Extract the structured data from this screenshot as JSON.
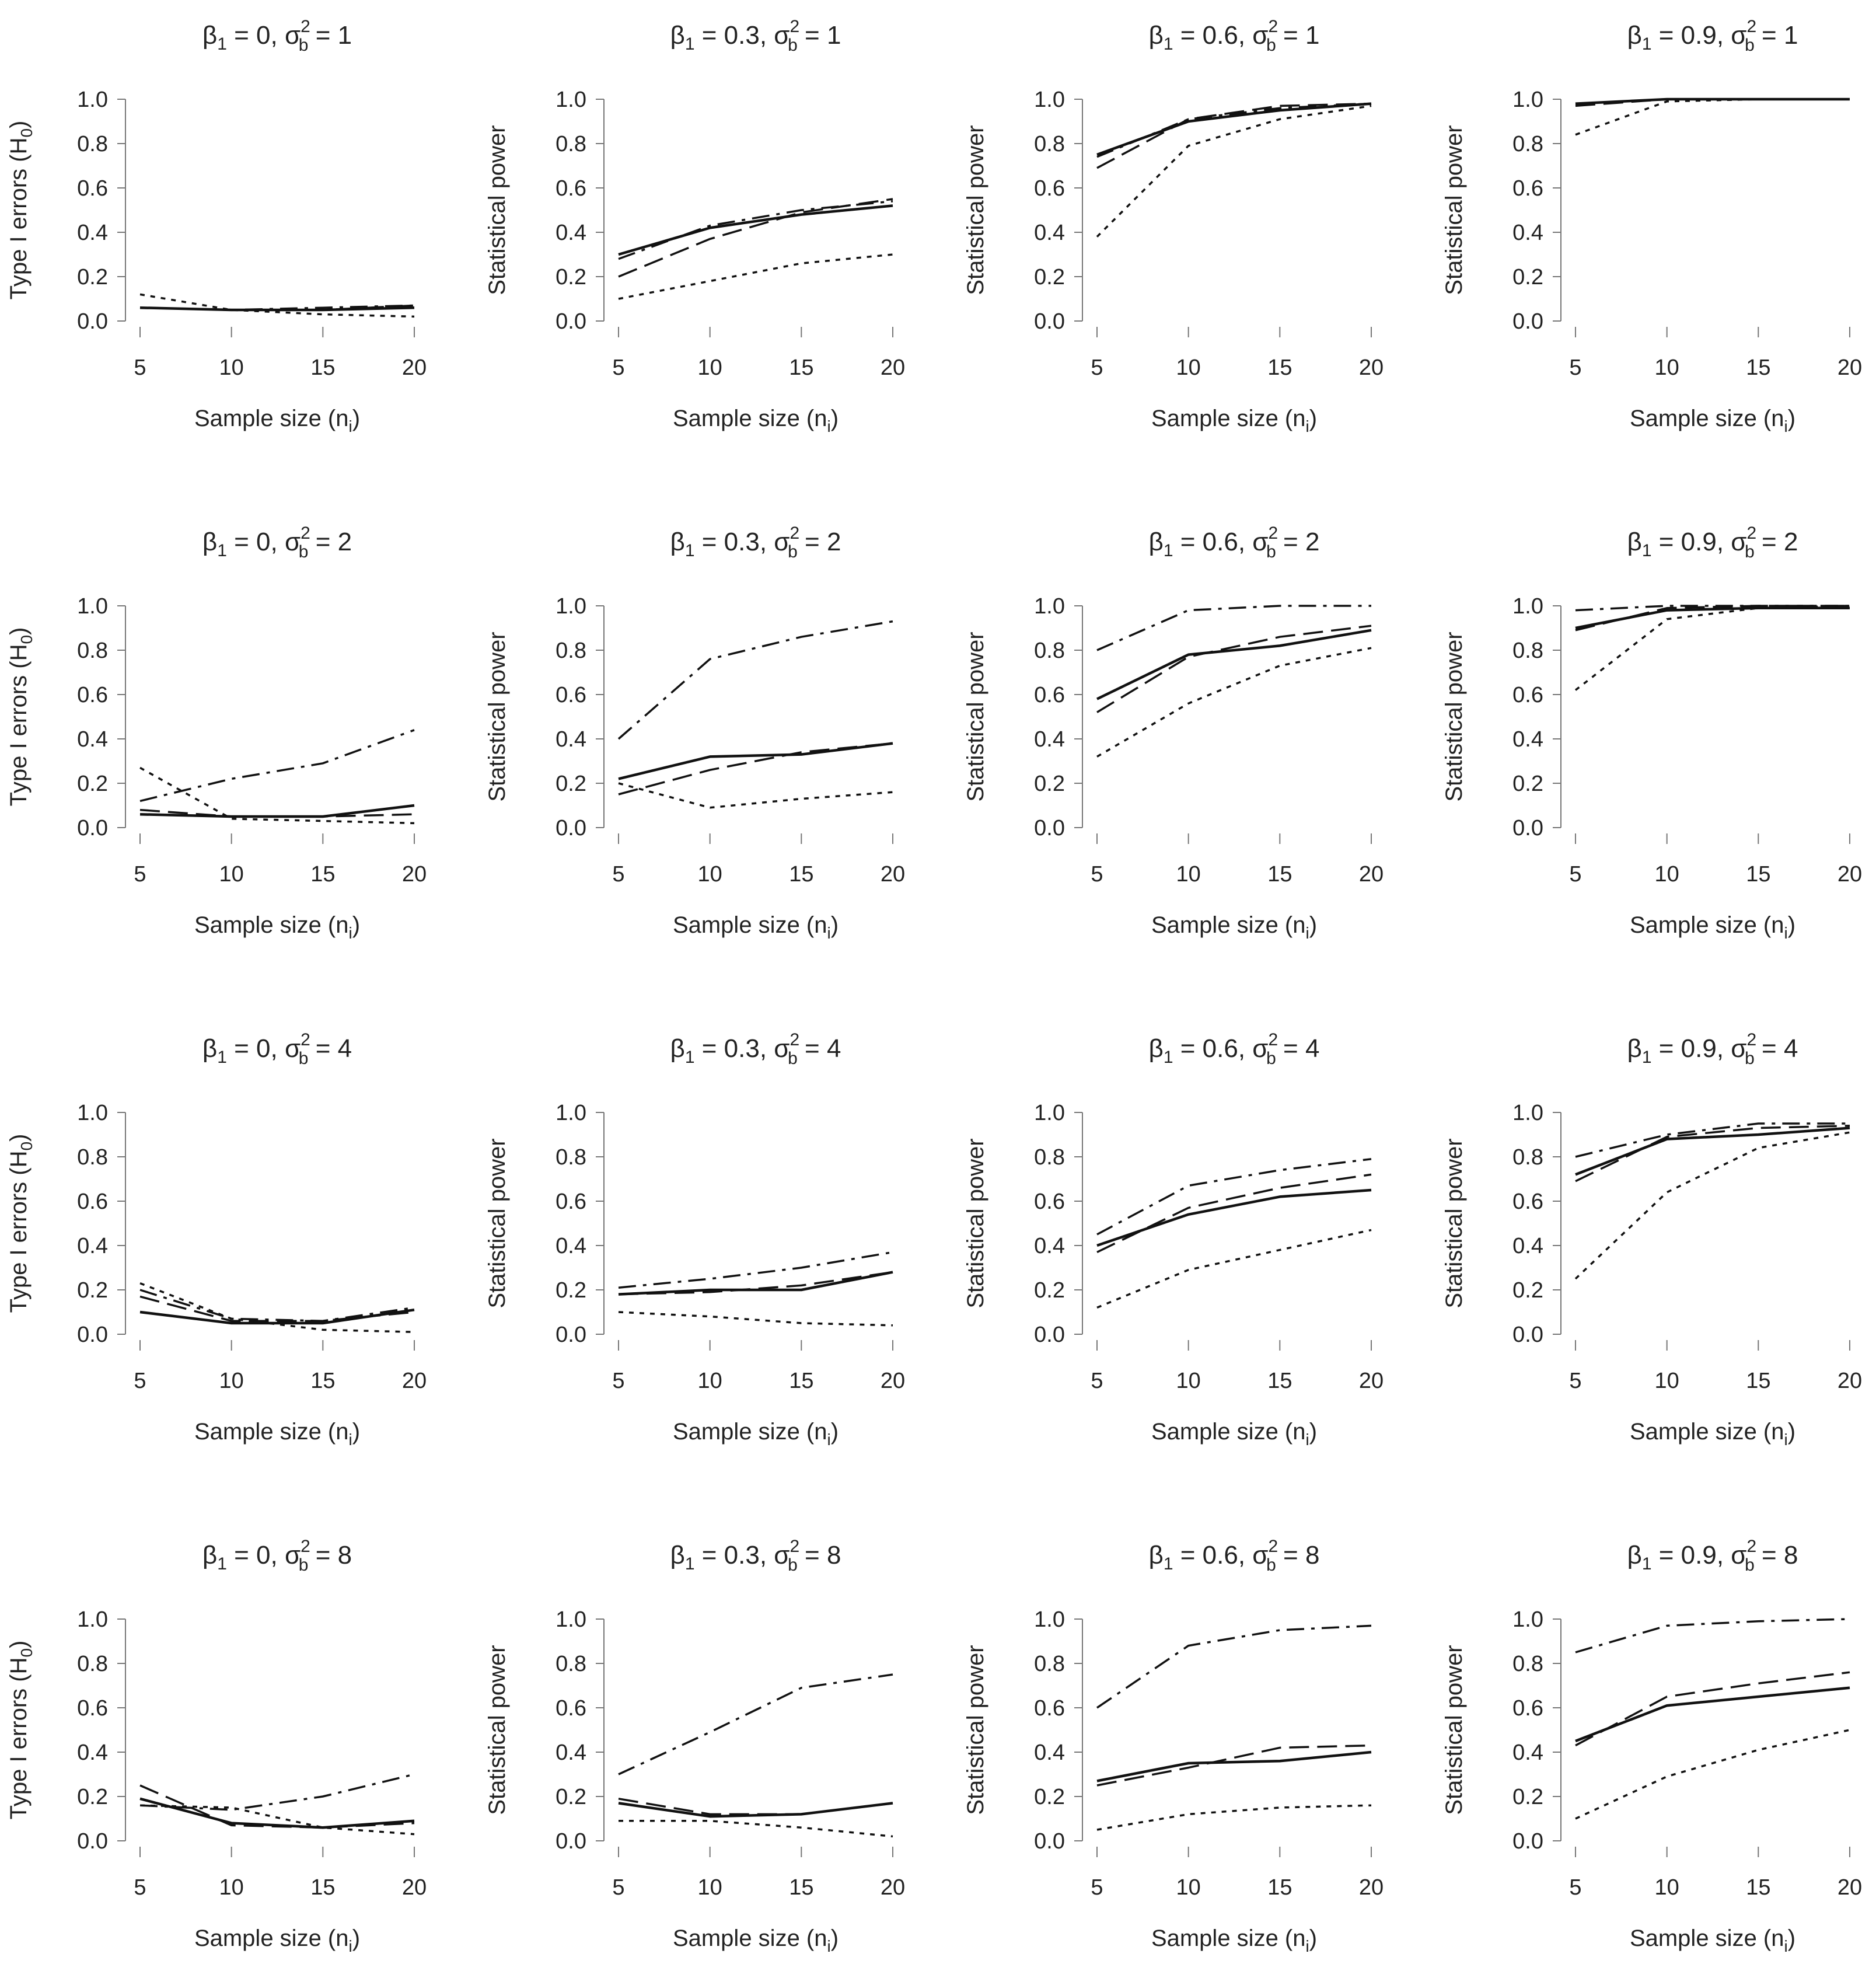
{
  "figure": {
    "axis_label_x": "Sample size (n",
    "axis_label_x_sub": "i",
    "axis_label_x_end": ")",
    "ylabel_h0": "Type I errors (H",
    "ylabel_h0_sub": "0",
    "ylabel_h0_end": ")",
    "ylabel_power": "Statistical power",
    "beta_symbol": "β",
    "beta_sub": "1",
    "sigma_symbol": "σ",
    "sigma_sub": "b",
    "sigma_sup": "2",
    "line_color": "#111111"
  },
  "chart_data": [
    {
      "type": "line",
      "title": "β1 = 0, σb2 = 1",
      "beta": "0",
      "sigma2": "1",
      "ylabel": "Type I errors (H0)",
      "x": [
        5,
        10,
        15,
        20
      ],
      "xlim": [
        5,
        20
      ],
      "ylim": [
        0,
        1
      ],
      "yticks": [
        "0.0",
        "0.2",
        "0.4",
        "0.6",
        "0.8",
        "1.0"
      ],
      "xticks": [
        "5",
        "10",
        "15",
        "20"
      ],
      "series": [
        {
          "name": "solid",
          "values": [
            0.06,
            0.05,
            0.05,
            0.06
          ]
        },
        {
          "name": "dashed",
          "values": [
            0.06,
            0.05,
            0.05,
            0.07
          ]
        },
        {
          "name": "dotted",
          "values": [
            0.12,
            0.05,
            0.03,
            0.02
          ]
        },
        {
          "name": "dashdot",
          "values": [
            0.06,
            0.05,
            0.06,
            0.07
          ]
        }
      ]
    },
    {
      "type": "line",
      "title": "β1 = 0.3, σb2 = 1",
      "beta": "0.3",
      "sigma2": "1",
      "ylabel": "Statistical power",
      "x": [
        5,
        10,
        15,
        20
      ],
      "xlim": [
        5,
        20
      ],
      "ylim": [
        0,
        1
      ],
      "yticks": [
        "0.0",
        "0.2",
        "0.4",
        "0.6",
        "0.8",
        "1.0"
      ],
      "xticks": [
        "5",
        "10",
        "15",
        "20"
      ],
      "series": [
        {
          "name": "solid",
          "values": [
            0.3,
            0.42,
            0.48,
            0.52
          ]
        },
        {
          "name": "dashed",
          "values": [
            0.2,
            0.37,
            0.49,
            0.55
          ]
        },
        {
          "name": "dotted",
          "values": [
            0.1,
            0.18,
            0.26,
            0.3
          ]
        },
        {
          "name": "dashdot",
          "values": [
            0.28,
            0.43,
            0.5,
            0.54
          ]
        }
      ]
    },
    {
      "type": "line",
      "title": "β1 = 0.6, σb2 = 1",
      "beta": "0.6",
      "sigma2": "1",
      "ylabel": "Statistical power",
      "x": [
        5,
        10,
        15,
        20
      ],
      "xlim": [
        5,
        20
      ],
      "ylim": [
        0,
        1
      ],
      "yticks": [
        "0.0",
        "0.2",
        "0.4",
        "0.6",
        "0.8",
        "1.0"
      ],
      "xticks": [
        "5",
        "10",
        "15",
        "20"
      ],
      "series": [
        {
          "name": "solid",
          "values": [
            0.75,
            0.9,
            0.95,
            0.98
          ]
        },
        {
          "name": "dashed",
          "values": [
            0.69,
            0.91,
            0.97,
            0.98
          ]
        },
        {
          "name": "dotted",
          "values": [
            0.38,
            0.79,
            0.91,
            0.97
          ]
        },
        {
          "name": "dashdot",
          "values": [
            0.74,
            0.91,
            0.96,
            0.98
          ]
        }
      ]
    },
    {
      "type": "line",
      "title": "β1 = 0.9, σb2 = 1",
      "beta": "0.9",
      "sigma2": "1",
      "ylabel": "Statistical power",
      "x": [
        5,
        10,
        15,
        20
      ],
      "xlim": [
        5,
        20
      ],
      "ylim": [
        0,
        1
      ],
      "yticks": [
        "0.0",
        "0.2",
        "0.4",
        "0.6",
        "0.8",
        "1.0"
      ],
      "xticks": [
        "5",
        "10",
        "15",
        "20"
      ],
      "series": [
        {
          "name": "solid",
          "values": [
            0.98,
            1.0,
            1.0,
            1.0
          ]
        },
        {
          "name": "dashed",
          "values": [
            0.97,
            1.0,
            1.0,
            1.0
          ]
        },
        {
          "name": "dotted",
          "values": [
            0.84,
            0.99,
            1.0,
            1.0
          ]
        },
        {
          "name": "dashdot",
          "values": [
            0.98,
            1.0,
            1.0,
            1.0
          ]
        }
      ]
    },
    {
      "type": "line",
      "title": "β1 = 0, σb2 = 2",
      "beta": "0",
      "sigma2": "2",
      "ylabel": "Type I errors (H0)",
      "x": [
        5,
        10,
        15,
        20
      ],
      "xlim": [
        5,
        20
      ],
      "ylim": [
        0,
        1
      ],
      "yticks": [
        "0.0",
        "0.2",
        "0.4",
        "0.6",
        "0.8",
        "1.0"
      ],
      "xticks": [
        "5",
        "10",
        "15",
        "20"
      ],
      "series": [
        {
          "name": "solid",
          "values": [
            0.06,
            0.05,
            0.05,
            0.1
          ]
        },
        {
          "name": "dashed",
          "values": [
            0.08,
            0.05,
            0.05,
            0.06
          ]
        },
        {
          "name": "dotted",
          "values": [
            0.27,
            0.04,
            0.03,
            0.02
          ]
        },
        {
          "name": "dashdot",
          "values": [
            0.12,
            0.22,
            0.29,
            0.44
          ]
        }
      ]
    },
    {
      "type": "line",
      "title": "β1 = 0.3, σb2 = 2",
      "beta": "0.3",
      "sigma2": "2",
      "ylabel": "Statistical power",
      "x": [
        5,
        10,
        15,
        20
      ],
      "xlim": [
        5,
        20
      ],
      "ylim": [
        0,
        1
      ],
      "yticks": [
        "0.0",
        "0.2",
        "0.4",
        "0.6",
        "0.8",
        "1.0"
      ],
      "xticks": [
        "5",
        "10",
        "15",
        "20"
      ],
      "series": [
        {
          "name": "solid",
          "values": [
            0.22,
            0.32,
            0.33,
            0.38
          ]
        },
        {
          "name": "dashed",
          "values": [
            0.15,
            0.26,
            0.34,
            0.38
          ]
        },
        {
          "name": "dotted",
          "values": [
            0.2,
            0.09,
            0.13,
            0.16
          ]
        },
        {
          "name": "dashdot",
          "values": [
            0.4,
            0.76,
            0.86,
            0.93
          ]
        }
      ]
    },
    {
      "type": "line",
      "title": "β1 = 0.6, σb2 = 2",
      "beta": "0.6",
      "sigma2": "2",
      "ylabel": "Statistical power",
      "x": [
        5,
        10,
        15,
        20
      ],
      "xlim": [
        5,
        20
      ],
      "ylim": [
        0,
        1
      ],
      "yticks": [
        "0.0",
        "0.2",
        "0.4",
        "0.6",
        "0.8",
        "1.0"
      ],
      "xticks": [
        "5",
        "10",
        "15",
        "20"
      ],
      "series": [
        {
          "name": "solid",
          "values": [
            0.58,
            0.78,
            0.82,
            0.89
          ]
        },
        {
          "name": "dashed",
          "values": [
            0.52,
            0.77,
            0.86,
            0.91
          ]
        },
        {
          "name": "dotted",
          "values": [
            0.32,
            0.56,
            0.73,
            0.81
          ]
        },
        {
          "name": "dashdot",
          "values": [
            0.8,
            0.98,
            1.0,
            1.0
          ]
        }
      ]
    },
    {
      "type": "line",
      "title": "β1 = 0.9, σb2 = 2",
      "beta": "0.9",
      "sigma2": "2",
      "ylabel": "Statistical power",
      "x": [
        5,
        10,
        15,
        20
      ],
      "xlim": [
        5,
        20
      ],
      "ylim": [
        0,
        1
      ],
      "yticks": [
        "0.0",
        "0.2",
        "0.4",
        "0.6",
        "0.8",
        "1.0"
      ],
      "xticks": [
        "5",
        "10",
        "15",
        "20"
      ],
      "series": [
        {
          "name": "solid",
          "values": [
            0.9,
            0.98,
            0.99,
            0.99
          ]
        },
        {
          "name": "dashed",
          "values": [
            0.89,
            0.99,
            1.0,
            1.0
          ]
        },
        {
          "name": "dotted",
          "values": [
            0.62,
            0.94,
            0.99,
            1.0
          ]
        },
        {
          "name": "dashdot",
          "values": [
            0.98,
            1.0,
            1.0,
            1.0
          ]
        }
      ]
    },
    {
      "type": "line",
      "title": "β1 = 0, σb2 = 4",
      "beta": "0",
      "sigma2": "4",
      "ylabel": "Type I errors (H0)",
      "x": [
        5,
        10,
        15,
        20
      ],
      "xlim": [
        5,
        20
      ],
      "ylim": [
        0,
        1
      ],
      "yticks": [
        "0.0",
        "0.2",
        "0.4",
        "0.6",
        "0.8",
        "1.0"
      ],
      "xticks": [
        "5",
        "10",
        "15",
        "20"
      ],
      "series": [
        {
          "name": "solid",
          "values": [
            0.1,
            0.05,
            0.05,
            0.11
          ]
        },
        {
          "name": "dashed",
          "values": [
            0.17,
            0.06,
            0.06,
            0.1
          ]
        },
        {
          "name": "dotted",
          "values": [
            0.23,
            0.07,
            0.02,
            0.01
          ]
        },
        {
          "name": "dashdot",
          "values": [
            0.2,
            0.07,
            0.06,
            0.12
          ]
        }
      ]
    },
    {
      "type": "line",
      "title": "β1 = 0.3, σb2 = 4",
      "beta": "0.3",
      "sigma2": "4",
      "ylabel": "Statistical power",
      "x": [
        5,
        10,
        15,
        20
      ],
      "xlim": [
        5,
        20
      ],
      "ylim": [
        0,
        1
      ],
      "yticks": [
        "0.0",
        "0.2",
        "0.4",
        "0.6",
        "0.8",
        "1.0"
      ],
      "xticks": [
        "5",
        "10",
        "15",
        "20"
      ],
      "series": [
        {
          "name": "solid",
          "values": [
            0.18,
            0.2,
            0.2,
            0.28
          ]
        },
        {
          "name": "dashed",
          "values": [
            0.18,
            0.19,
            0.22,
            0.28
          ]
        },
        {
          "name": "dotted",
          "values": [
            0.1,
            0.08,
            0.05,
            0.04
          ]
        },
        {
          "name": "dashdot",
          "values": [
            0.21,
            0.25,
            0.3,
            0.37
          ]
        }
      ]
    },
    {
      "type": "line",
      "title": "β1 = 0.6, σb2 = 4",
      "beta": "0.6",
      "sigma2": "4",
      "ylabel": "Statistical power",
      "x": [
        5,
        10,
        15,
        20
      ],
      "xlim": [
        5,
        20
      ],
      "ylim": [
        0,
        1
      ],
      "yticks": [
        "0.0",
        "0.2",
        "0.4",
        "0.6",
        "0.8",
        "1.0"
      ],
      "xticks": [
        "5",
        "10",
        "15",
        "20"
      ],
      "series": [
        {
          "name": "solid",
          "values": [
            0.4,
            0.54,
            0.62,
            0.65
          ]
        },
        {
          "name": "dashed",
          "values": [
            0.37,
            0.57,
            0.66,
            0.72
          ]
        },
        {
          "name": "dotted",
          "values": [
            0.12,
            0.29,
            0.38,
            0.47
          ]
        },
        {
          "name": "dashdot",
          "values": [
            0.45,
            0.67,
            0.74,
            0.79
          ]
        }
      ]
    },
    {
      "type": "line",
      "title": "β1 = 0.9, σb2 = 4",
      "beta": "0.9",
      "sigma2": "4",
      "ylabel": "Statistical power",
      "x": [
        5,
        10,
        15,
        20
      ],
      "xlim": [
        5,
        20
      ],
      "ylim": [
        0,
        1
      ],
      "yticks": [
        "0.0",
        "0.2",
        "0.4",
        "0.6",
        "0.8",
        "1.0"
      ],
      "xticks": [
        "5",
        "10",
        "15",
        "20"
      ],
      "series": [
        {
          "name": "solid",
          "values": [
            0.72,
            0.88,
            0.9,
            0.93
          ]
        },
        {
          "name": "dashed",
          "values": [
            0.69,
            0.89,
            0.93,
            0.94
          ]
        },
        {
          "name": "dotted",
          "values": [
            0.25,
            0.64,
            0.84,
            0.91
          ]
        },
        {
          "name": "dashdot",
          "values": [
            0.8,
            0.9,
            0.95,
            0.95
          ]
        }
      ]
    },
    {
      "type": "line",
      "title": "β1 = 0, σb2 = 8",
      "beta": "0",
      "sigma2": "8",
      "ylabel": "Type I errors (H0)",
      "x": [
        5,
        10,
        15,
        20
      ],
      "xlim": [
        5,
        20
      ],
      "ylim": [
        0,
        1
      ],
      "yticks": [
        "0.0",
        "0.2",
        "0.4",
        "0.6",
        "0.8",
        "1.0"
      ],
      "xticks": [
        "5",
        "10",
        "15",
        "20"
      ],
      "series": [
        {
          "name": "solid",
          "values": [
            0.19,
            0.08,
            0.06,
            0.09
          ]
        },
        {
          "name": "dashed",
          "values": [
            0.25,
            0.07,
            0.06,
            0.08
          ]
        },
        {
          "name": "dotted",
          "values": [
            0.16,
            0.15,
            0.06,
            0.03
          ]
        },
        {
          "name": "dashdot",
          "values": [
            0.16,
            0.14,
            0.2,
            0.3
          ]
        }
      ]
    },
    {
      "type": "line",
      "title": "β1 = 0.3, σb2 = 8",
      "beta": "0.3",
      "sigma2": "8",
      "ylabel": "Statistical power",
      "x": [
        5,
        10,
        15,
        20
      ],
      "xlim": [
        5,
        20
      ],
      "ylim": [
        0,
        1
      ],
      "yticks": [
        "0.0",
        "0.2",
        "0.4",
        "0.6",
        "0.8",
        "1.0"
      ],
      "xticks": [
        "5",
        "10",
        "15",
        "20"
      ],
      "series": [
        {
          "name": "solid",
          "values": [
            0.17,
            0.11,
            0.12,
            0.17
          ]
        },
        {
          "name": "dashed",
          "values": [
            0.19,
            0.12,
            0.12,
            0.17
          ]
        },
        {
          "name": "dotted",
          "values": [
            0.09,
            0.09,
            0.06,
            0.02
          ]
        },
        {
          "name": "dashdot",
          "values": [
            0.3,
            0.49,
            0.69,
            0.75
          ]
        }
      ]
    },
    {
      "type": "line",
      "title": "β1 = 0.6, σb2 = 8",
      "beta": "0.6",
      "sigma2": "8",
      "ylabel": "Statistical power",
      "x": [
        5,
        10,
        15,
        20
      ],
      "xlim": [
        5,
        20
      ],
      "ylim": [
        0,
        1
      ],
      "yticks": [
        "0.0",
        "0.2",
        "0.4",
        "0.6",
        "0.8",
        "1.0"
      ],
      "xticks": [
        "5",
        "10",
        "15",
        "20"
      ],
      "series": [
        {
          "name": "solid",
          "values": [
            0.27,
            0.35,
            0.36,
            0.4
          ]
        },
        {
          "name": "dashed",
          "values": [
            0.25,
            0.33,
            0.42,
            0.43
          ]
        },
        {
          "name": "dotted",
          "values": [
            0.05,
            0.12,
            0.15,
            0.16
          ]
        },
        {
          "name": "dashdot",
          "values": [
            0.6,
            0.88,
            0.95,
            0.97
          ]
        }
      ]
    },
    {
      "type": "line",
      "title": "β1 = 0.9, σb2 = 8",
      "beta": "0.9",
      "sigma2": "8",
      "ylabel": "Statistical power",
      "x": [
        5,
        10,
        15,
        20
      ],
      "xlim": [
        5,
        20
      ],
      "ylim": [
        0,
        1
      ],
      "yticks": [
        "0.0",
        "0.2",
        "0.4",
        "0.6",
        "0.8",
        "1.0"
      ],
      "xticks": [
        "5",
        "10",
        "15",
        "20"
      ],
      "series": [
        {
          "name": "solid",
          "values": [
            0.45,
            0.61,
            0.65,
            0.69
          ]
        },
        {
          "name": "dashed",
          "values": [
            0.43,
            0.65,
            0.71,
            0.76
          ]
        },
        {
          "name": "dotted",
          "values": [
            0.1,
            0.29,
            0.41,
            0.5
          ]
        },
        {
          "name": "dashdot",
          "values": [
            0.85,
            0.97,
            0.99,
            1.0
          ]
        }
      ]
    }
  ]
}
